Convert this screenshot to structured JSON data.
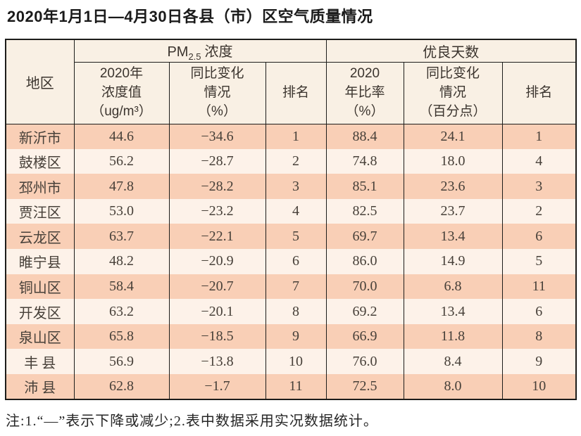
{
  "title": "2020年1月1日—4月30日各县（市）区空气质量情况",
  "colors": {
    "header_bg": "#f9f0e4",
    "row_odd": "#f9cfb6",
    "row_even": "#fdf2e9",
    "border": "#1d1d1b"
  },
  "table": {
    "col_region": "地区",
    "group_pm": {
      "prefix": "PM",
      "sub": "2.5",
      "suffix": "浓度"
    },
    "group_days": "优良天数",
    "subheaders": {
      "pm_value": "2020年\n浓度值\n（ug/m³）",
      "pm_change": "同比变化\n情况\n（%）",
      "pm_rank": "排名",
      "days_ratio": "2020\n年比率\n（%）",
      "days_change": "同比变化\n情况\n（百分点）",
      "days_rank": "排名"
    },
    "rows": [
      {
        "region": "新沂市",
        "pm_value": "44.6",
        "pm_change": "−34.6",
        "pm_rank": "1",
        "days_ratio": "88.4",
        "days_change": "24.1",
        "days_rank": "1"
      },
      {
        "region": "鼓楼区",
        "pm_value": "56.2",
        "pm_change": "−28.7",
        "pm_rank": "2",
        "days_ratio": "74.8",
        "days_change": "18.0",
        "days_rank": "4"
      },
      {
        "region": "邳州市",
        "pm_value": "47.8",
        "pm_change": "−28.2",
        "pm_rank": "3",
        "days_ratio": "85.1",
        "days_change": "23.6",
        "days_rank": "3"
      },
      {
        "region": "贾汪区",
        "pm_value": "53.0",
        "pm_change": "−23.2",
        "pm_rank": "4",
        "days_ratio": "82.5",
        "days_change": "23.7",
        "days_rank": "2"
      },
      {
        "region": "云龙区",
        "pm_value": "63.7",
        "pm_change": "−22.1",
        "pm_rank": "5",
        "days_ratio": "69.7",
        "days_change": "13.4",
        "days_rank": "6"
      },
      {
        "region": "睢宁县",
        "pm_value": "48.2",
        "pm_change": "−20.9",
        "pm_rank": "6",
        "days_ratio": "86.0",
        "days_change": "14.9",
        "days_rank": "5"
      },
      {
        "region": "铜山区",
        "pm_value": "58.4",
        "pm_change": "−20.7",
        "pm_rank": "7",
        "days_ratio": "70.0",
        "days_change": "6.8",
        "days_rank": "11"
      },
      {
        "region": "开发区",
        "pm_value": "63.2",
        "pm_change": "−20.1",
        "pm_rank": "8",
        "days_ratio": "69.2",
        "days_change": "13.4",
        "days_rank": "6"
      },
      {
        "region": "泉山区",
        "pm_value": "65.8",
        "pm_change": "−18.5",
        "pm_rank": "9",
        "days_ratio": "66.9",
        "days_change": "11.8",
        "days_rank": "8"
      },
      {
        "region": "丰 县",
        "pm_value": "56.9",
        "pm_change": "−13.8",
        "pm_rank": "10",
        "days_ratio": "76.0",
        "days_change": "8.4",
        "days_rank": "9"
      },
      {
        "region": "沛 县",
        "pm_value": "62.8",
        "pm_change": "−1.7",
        "pm_rank": "11",
        "days_ratio": "72.5",
        "days_change": "8.0",
        "days_rank": "10"
      }
    ]
  },
  "note": "注:1.“—”表示下降或减少;2.表中数据采用实况数据统计。"
}
